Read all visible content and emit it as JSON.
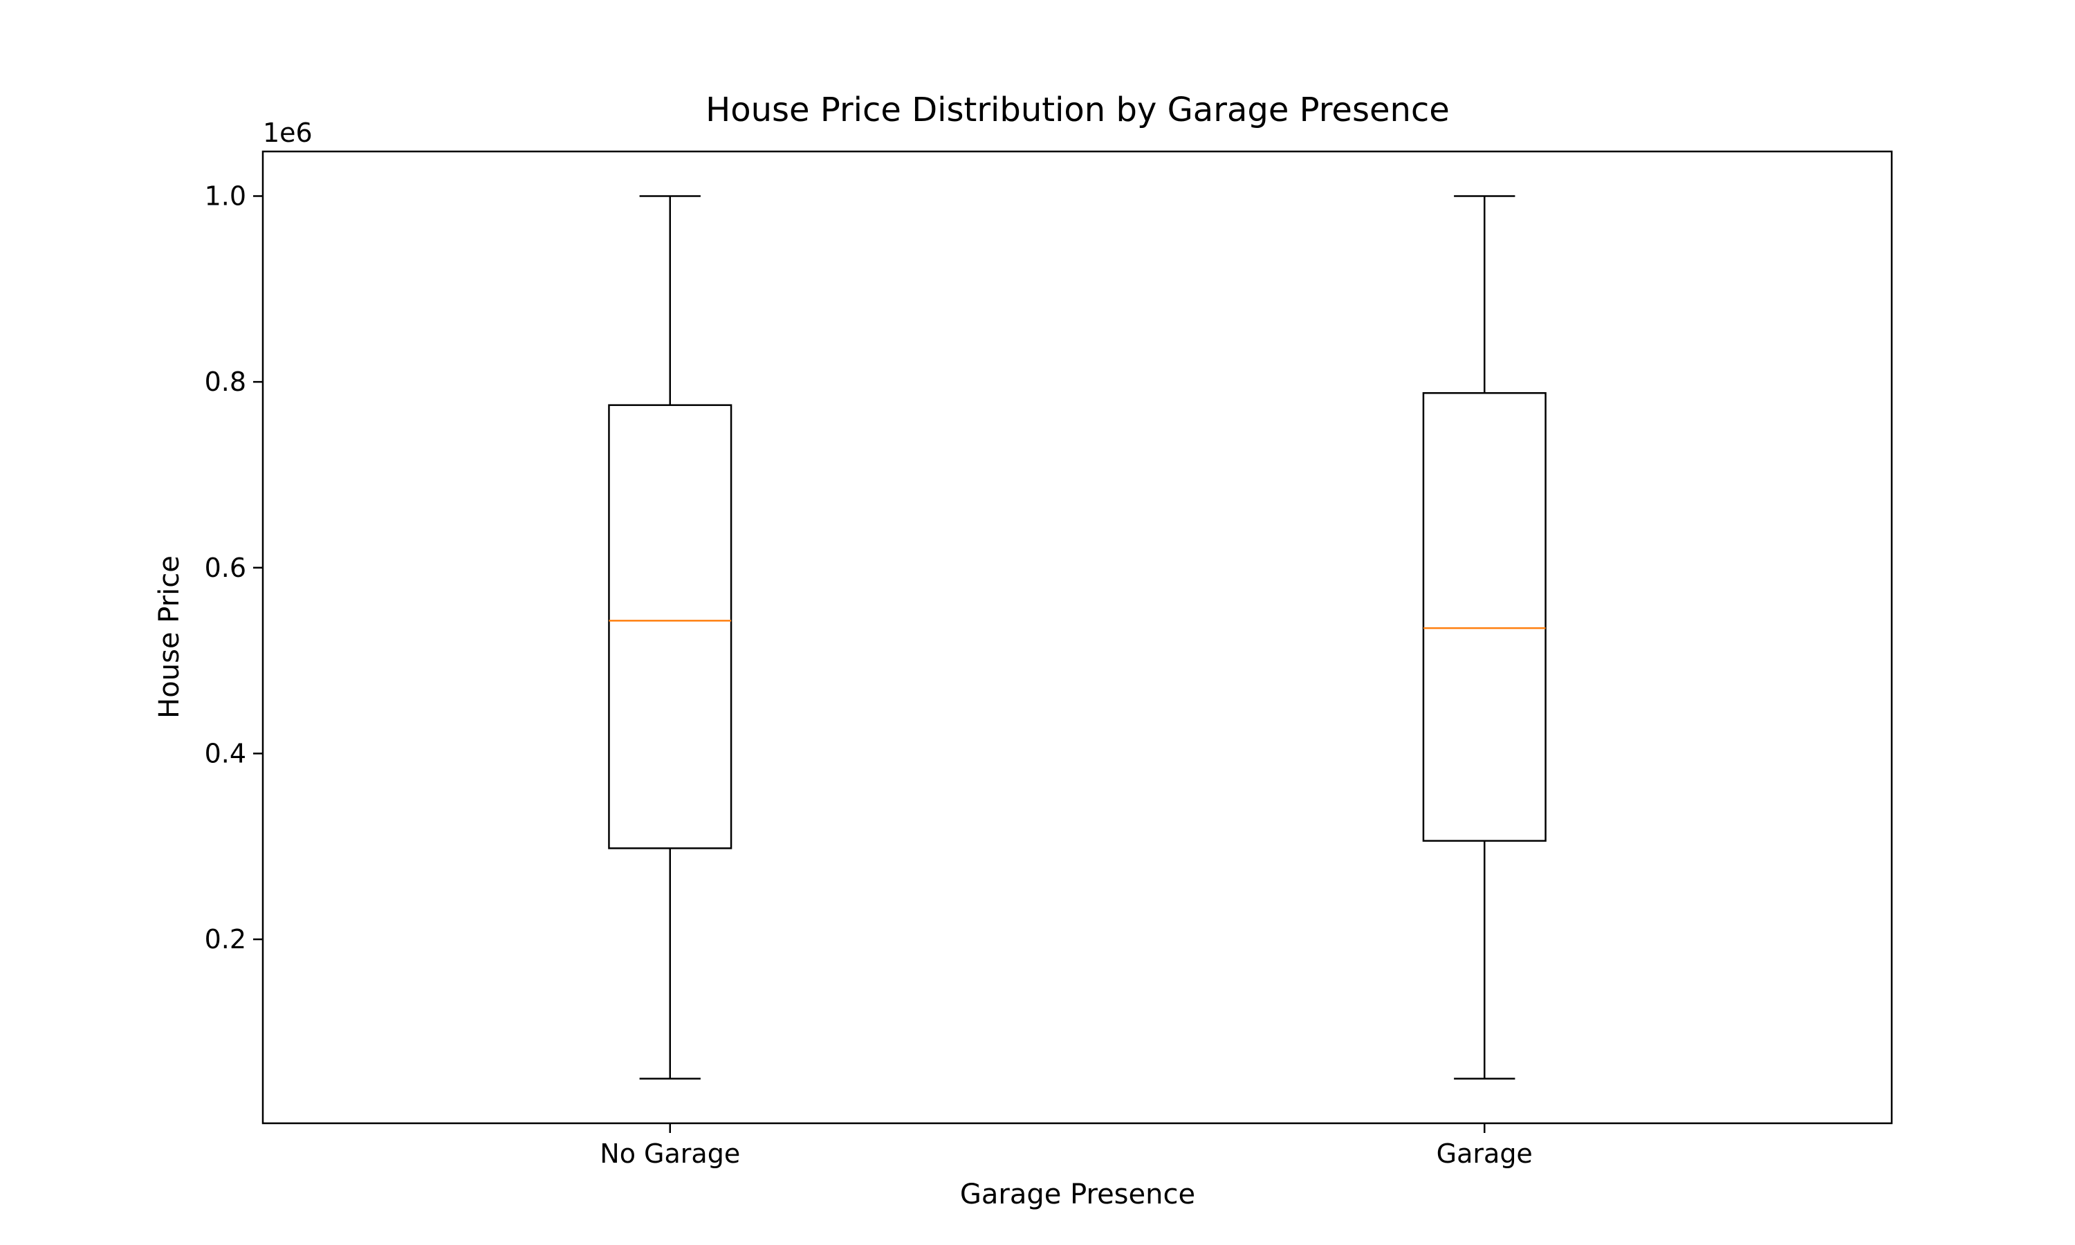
{
  "chart_data": {
    "type": "box",
    "title": "House Price Distribution by Garage Presence",
    "xlabel": "Garage Presence",
    "ylabel": "House Price",
    "y_offset_label": "1e6",
    "ylim": [
      0.002,
      1.048
    ],
    "yticks": [
      0.2,
      0.4,
      0.6,
      0.8,
      1.0
    ],
    "ytick_labels": [
      "0.2",
      "0.4",
      "0.6",
      "0.8",
      "1.0"
    ],
    "categories": [
      "No Garage",
      "Garage"
    ],
    "boxes": [
      {
        "category": "No Garage",
        "whisker_low": 0.05,
        "q1": 0.298,
        "median": 0.543,
        "q3": 0.775,
        "whisker_high": 1.0
      },
      {
        "category": "Garage",
        "whisker_low": 0.05,
        "q1": 0.306,
        "median": 0.535,
        "q3": 0.788,
        "whisker_high": 1.0
      }
    ],
    "grid": false,
    "colors": {
      "box": "#000000",
      "median": "#ff7f0e"
    }
  }
}
